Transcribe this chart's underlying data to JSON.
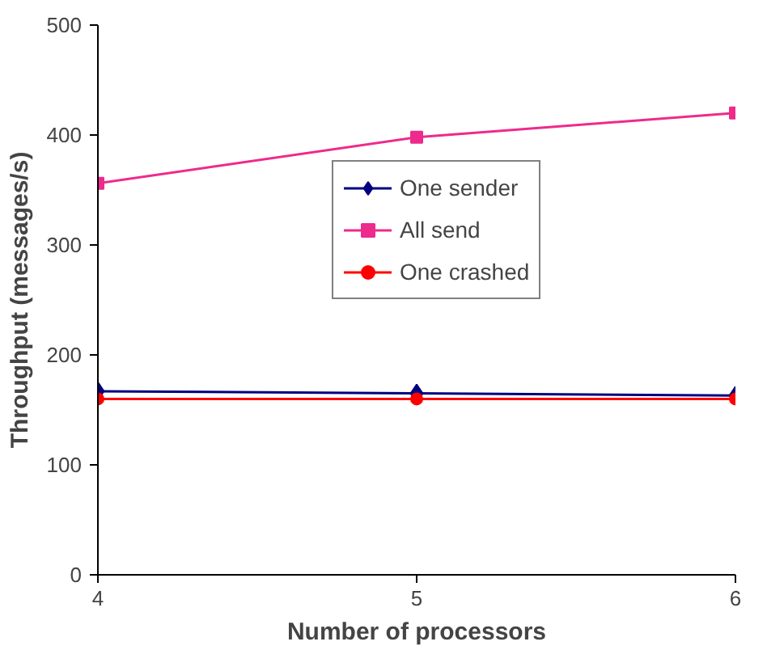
{
  "chart_data": {
    "type": "line",
    "xlabel": "Number of processors",
    "ylabel": "Throughput (messages/s)",
    "x": [
      4,
      5,
      6
    ],
    "xlim": [
      4,
      6
    ],
    "xticks": [
      4,
      5,
      6
    ],
    "ylim": [
      0,
      500
    ],
    "yticks": [
      0,
      100,
      200,
      300,
      400,
      500
    ],
    "grid": false,
    "legend": "right",
    "series": [
      {
        "name": "One sender",
        "color": "#000080",
        "marker": "diamond",
        "values": [
          167,
          165,
          163
        ]
      },
      {
        "name": "All send",
        "color": "#ee2a8c",
        "marker": "square",
        "values": [
          356,
          398,
          420
        ]
      },
      {
        "name": "One crashed",
        "color": "#ff0000",
        "marker": "circle",
        "values": [
          160,
          160,
          160
        ]
      }
    ]
  }
}
